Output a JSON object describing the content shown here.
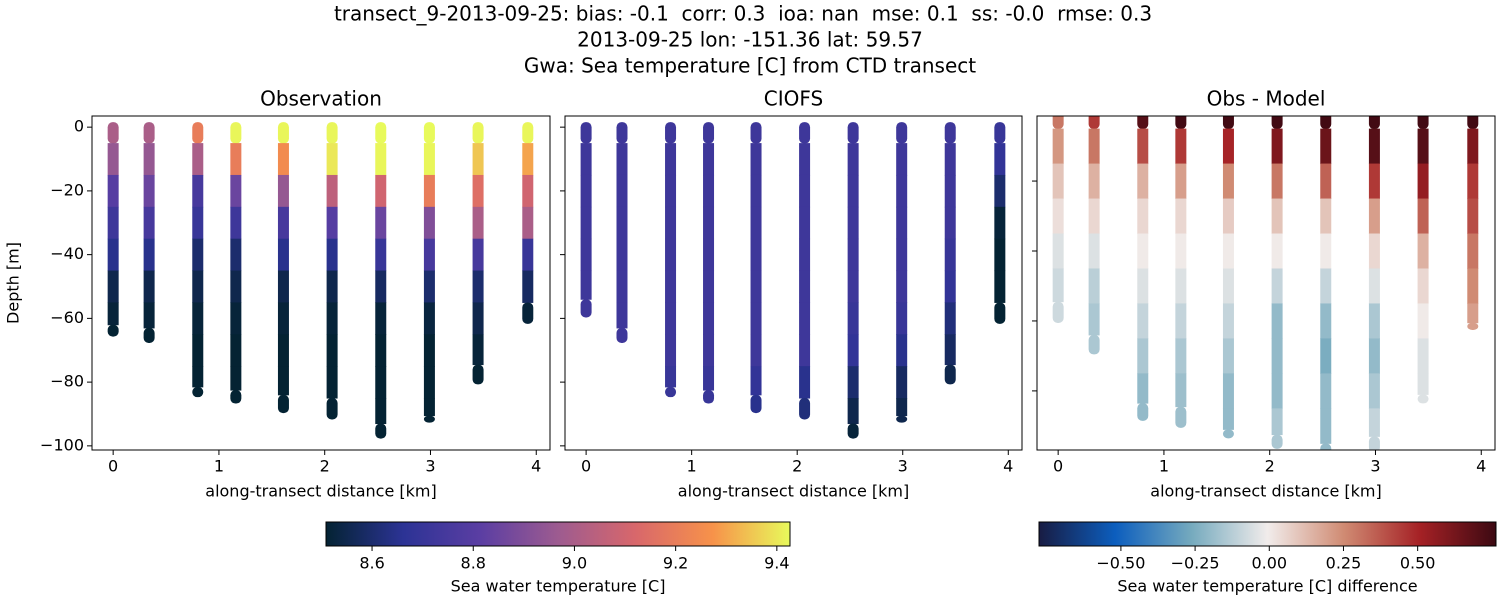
{
  "suptitle": [
    "transect_9-2013-09-25: bias: -0.1  corr: 0.3  ioa: nan  mse: 0.1  ss: -0.0  rmse: 0.3",
    "2013-09-25 lon: -151.36 lat: 59.57",
    "Gwa: Sea temperature [C] from CTD transect"
  ],
  "colorbars": [
    {
      "label": "Sea water temperature [C]",
      "clim": [
        8.509,
        9.426
      ],
      "colormap": [
        "#042333",
        "#2c3395",
        "#5b3ea3",
        "#9d5b90",
        "#d8676b",
        "#f7924a",
        "#e8fa5b"
      ],
      "ticks": [
        8.6,
        8.8,
        {
          "value": 9,
          "label": "9.0"
        },
        9.2,
        9.4
      ]
    },
    {
      "label": "Sea water temperature [C] difference",
      "clim": [
        -0.776,
        0.764
      ],
      "colormap": [
        "#181c43",
        "#0c5ebe",
        "#75aabe",
        "#f1eceb",
        "#d08b73",
        "#a52125",
        "#3c0912"
      ],
      "ticks": [
        {
          "value": -0.5,
          "label": "−0.50"
        },
        {
          "value": -0.25,
          "label": "−0.25"
        },
        {
          "value": 0,
          "label": "0.00"
        },
        0.25,
        {
          "value": 0.5,
          "label": "0.50"
        }
      ]
    }
  ],
  "chart_data": [
    {
      "type": "scatter",
      "title": "Observation",
      "xlabel": "along-transect distance [km]",
      "ylabel": "Depth [m]",
      "colorbar": 0,
      "xlim": [
        -0.2,
        4.13
      ],
      "xticks": [
        0,
        1,
        2,
        3,
        4
      ],
      "ylim": [
        -101.3,
        3.5
      ],
      "yticks": [
        0,
        {
          "value": -20,
          "label": "−20"
        },
        {
          "value": -40,
          "label": "−40"
        },
        {
          "value": -60,
          "label": "−60"
        },
        {
          "value": -80,
          "label": "−80"
        },
        {
          "value": -100,
          "label": "−100"
        }
      ],
      "casts": [
        {
          "x": 0,
          "depth": [
            0,
            -10,
            -20,
            -30,
            -40,
            -50,
            -60,
            -64
          ],
          "values": [
            9.0,
            8.95,
            8.8,
            8.72,
            8.65,
            8.55,
            8.52,
            8.5
          ]
        },
        {
          "x": 0.34,
          "depth": [
            0,
            -10,
            -20,
            -30,
            -40,
            -50,
            -60,
            -66
          ],
          "values": [
            9.0,
            8.95,
            8.85,
            8.75,
            8.65,
            8.55,
            8.52,
            8.5
          ]
        },
        {
          "x": 0.8,
          "depth": [
            0,
            -10,
            -20,
            -30,
            -40,
            -50,
            -60,
            -70,
            -80,
            -83
          ],
          "values": [
            9.2,
            9.0,
            8.75,
            8.7,
            8.6,
            8.55,
            8.52,
            8.5,
            8.5,
            8.5
          ]
        },
        {
          "x": 1.16,
          "depth": [
            0,
            -10,
            -20,
            -30,
            -40,
            -50,
            -60,
            -70,
            -80,
            -85
          ],
          "values": [
            9.42,
            9.2,
            8.85,
            8.72,
            8.6,
            8.55,
            8.52,
            8.5,
            8.5,
            8.5
          ]
        },
        {
          "x": 1.61,
          "depth": [
            0,
            -10,
            -20,
            -30,
            -40,
            -50,
            -60,
            -70,
            -80,
            -88
          ],
          "values": [
            9.42,
            9.25,
            8.95,
            8.75,
            8.65,
            8.55,
            8.52,
            8.5,
            8.5,
            8.5
          ]
        },
        {
          "x": 2.07,
          "depth": [
            0,
            -10,
            -20,
            -30,
            -40,
            -50,
            -60,
            -70,
            -80,
            -90
          ],
          "values": [
            9.42,
            9.4,
            9.05,
            8.8,
            8.65,
            8.55,
            8.52,
            8.5,
            8.5,
            8.5
          ]
        },
        {
          "x": 2.53,
          "depth": [
            0,
            -10,
            -20,
            -30,
            -40,
            -50,
            -60,
            -70,
            -80,
            -90,
            -96
          ],
          "values": [
            9.43,
            9.42,
            9.1,
            8.85,
            8.7,
            8.58,
            8.52,
            8.5,
            8.5,
            8.5,
            8.5
          ]
        },
        {
          "x": 2.99,
          "depth": [
            0,
            -10,
            -20,
            -30,
            -40,
            -50,
            -60,
            -70,
            -80,
            -90,
            -91
          ],
          "values": [
            9.43,
            9.42,
            9.2,
            8.9,
            8.75,
            8.6,
            8.53,
            8.5,
            8.5,
            8.5,
            8.5
          ]
        },
        {
          "x": 3.45,
          "depth": [
            0,
            -10,
            -20,
            -30,
            -40,
            -50,
            -60,
            -70,
            -79
          ],
          "values": [
            9.42,
            9.35,
            9.15,
            9.0,
            8.75,
            8.6,
            8.55,
            8.52,
            8.5
          ]
        },
        {
          "x": 3.92,
          "depth": [
            0,
            -10,
            -20,
            -30,
            -40,
            -50,
            -60
          ],
          "values": [
            9.42,
            9.3,
            9.1,
            9.0,
            8.7,
            8.58,
            8.52
          ]
        }
      ]
    },
    {
      "type": "scatter",
      "title": "CIOFS",
      "xlabel": "along-transect distance [km]",
      "colorbar": 0,
      "sharey": true,
      "xlim": [
        -0.2,
        4.13
      ],
      "xticks": [
        0,
        1,
        2,
        3,
        4
      ],
      "casts": [
        {
          "x": 0,
          "depth": [
            0,
            -10,
            -20,
            -30,
            -40,
            -50,
            -58
          ],
          "values": [
            8.72,
            8.72,
            8.72,
            8.72,
            8.72,
            8.72,
            8.72
          ]
        },
        {
          "x": 0.34,
          "depth": [
            0,
            -10,
            -20,
            -30,
            -40,
            -50,
            -60,
            -66
          ],
          "values": [
            8.72,
            8.72,
            8.72,
            8.72,
            8.72,
            8.72,
            8.72,
            8.72
          ]
        },
        {
          "x": 0.8,
          "depth": [
            0,
            -10,
            -20,
            -30,
            -40,
            -50,
            -60,
            -70,
            -80,
            -83
          ],
          "values": [
            8.72,
            8.72,
            8.72,
            8.72,
            8.72,
            8.72,
            8.72,
            8.72,
            8.7,
            8.7
          ]
        },
        {
          "x": 1.16,
          "depth": [
            0,
            -10,
            -20,
            -30,
            -40,
            -50,
            -60,
            -70,
            -80,
            -85
          ],
          "values": [
            8.72,
            8.72,
            8.72,
            8.72,
            8.72,
            8.72,
            8.72,
            8.72,
            8.7,
            8.7
          ]
        },
        {
          "x": 1.61,
          "depth": [
            0,
            -10,
            -20,
            -30,
            -40,
            -50,
            -60,
            -70,
            -80,
            -88
          ],
          "values": [
            8.72,
            8.72,
            8.72,
            8.72,
            8.72,
            8.72,
            8.72,
            8.72,
            8.68,
            8.65
          ]
        },
        {
          "x": 2.07,
          "depth": [
            0,
            -10,
            -20,
            -30,
            -40,
            -50,
            -60,
            -70,
            -80,
            -90
          ],
          "values": [
            8.72,
            8.72,
            8.72,
            8.72,
            8.72,
            8.72,
            8.72,
            8.72,
            8.65,
            8.62
          ]
        },
        {
          "x": 2.53,
          "depth": [
            0,
            -10,
            -20,
            -30,
            -40,
            -50,
            -60,
            -70,
            -80,
            -90,
            -96
          ],
          "values": [
            8.72,
            8.72,
            8.72,
            8.72,
            8.72,
            8.72,
            8.7,
            8.68,
            8.6,
            8.55,
            8.52
          ]
        },
        {
          "x": 2.99,
          "depth": [
            0,
            -10,
            -20,
            -30,
            -40,
            -50,
            -60,
            -70,
            -80,
            -90,
            -91
          ],
          "values": [
            8.72,
            8.72,
            8.72,
            8.72,
            8.72,
            8.72,
            8.7,
            8.65,
            8.58,
            8.55,
            8.55
          ]
        },
        {
          "x": 3.45,
          "depth": [
            0,
            -10,
            -20,
            -30,
            -40,
            -50,
            -60,
            -70,
            -79
          ],
          "values": [
            8.72,
            8.72,
            8.72,
            8.72,
            8.7,
            8.68,
            8.62,
            8.58,
            8.55
          ]
        },
        {
          "x": 3.92,
          "depth": [
            0,
            -10,
            -20,
            -30,
            -40,
            -50,
            -60
          ],
          "values": [
            8.7,
            8.68,
            8.6,
            8.52,
            8.5,
            8.5,
            8.5
          ]
        }
      ]
    },
    {
      "type": "scatter",
      "title": "Obs - Model",
      "xlabel": "along-transect distance [km]",
      "colorbar": 1,
      "ytick_labels": false,
      "xlim": [
        -0.2,
        4.13
      ],
      "xticks": [
        0,
        1,
        2,
        3,
        4
      ],
      "ylim": [
        -96.9,
        -1.4
      ],
      "yticks": [
        -80,
        -60,
        -40,
        -20
      ],
      "casts": [
        {
          "x": 0,
          "depth": [
            0,
            -10,
            -20,
            -30,
            -40,
            -50,
            -59
          ],
          "values": [
            0.3,
            0.22,
            0.1,
            0.03,
            -0.05,
            -0.08,
            -0.08
          ]
        },
        {
          "x": 0.34,
          "depth": [
            0,
            -10,
            -20,
            -30,
            -40,
            -50,
            -60,
            -68
          ],
          "values": [
            0.45,
            0.3,
            0.15,
            0.05,
            -0.05,
            -0.12,
            -0.15,
            -0.15
          ]
        },
        {
          "x": 0.8,
          "depth": [
            0,
            -10,
            -20,
            -30,
            -40,
            -50,
            -60,
            -70,
            -80,
            -87
          ],
          "values": [
            0.7,
            0.4,
            0.15,
            0.05,
            0,
            -0.05,
            -0.1,
            -0.15,
            -0.2,
            -0.2
          ]
        },
        {
          "x": 1.16,
          "depth": [
            0,
            -10,
            -20,
            -30,
            -40,
            -50,
            -60,
            -70,
            -80,
            -89
          ],
          "values": [
            0.75,
            0.45,
            0.2,
            0.05,
            0,
            -0.05,
            -0.1,
            -0.15,
            -0.18,
            -0.18
          ]
        },
        {
          "x": 1.61,
          "depth": [
            0,
            -10,
            -20,
            -30,
            -40,
            -50,
            -60,
            -70,
            -80,
            -90,
            -92
          ],
          "values": [
            0.75,
            0.5,
            0.25,
            0.08,
            0,
            -0.05,
            -0.1,
            -0.15,
            -0.2,
            -0.2,
            -0.2
          ]
        },
        {
          "x": 2.07,
          "depth": [
            0,
            -10,
            -20,
            -30,
            -40,
            -50,
            -60,
            -70,
            -80,
            -90,
            -95
          ],
          "values": [
            0.75,
            0.6,
            0.3,
            0.1,
            0,
            -0.1,
            -0.2,
            -0.2,
            -0.2,
            -0.15,
            -0.15
          ]
        },
        {
          "x": 2.53,
          "depth": [
            0,
            -10,
            -20,
            -30,
            -40,
            -50,
            -60,
            -70,
            -80,
            -90,
            -100
          ],
          "values": [
            0.75,
            0.65,
            0.35,
            0.1,
            0,
            -0.1,
            -0.2,
            -0.25,
            -0.2,
            -0.2,
            -0.2
          ]
        },
        {
          "x": 2.99,
          "depth": [
            0,
            -10,
            -20,
            -30,
            -40,
            -50,
            -60,
            -70,
            -80,
            -90,
            -96
          ],
          "values": [
            0.75,
            0.7,
            0.45,
            0.2,
            0.05,
            -0.05,
            -0.15,
            -0.2,
            -0.15,
            -0.1,
            -0.1
          ]
        },
        {
          "x": 3.45,
          "depth": [
            0,
            -10,
            -20,
            -30,
            -40,
            -50,
            -60,
            -70,
            -80,
            -82
          ],
          "values": [
            0.75,
            0.7,
            0.55,
            0.35,
            0.15,
            0.05,
            0,
            -0.05,
            -0.05,
            -0.05
          ]
        },
        {
          "x": 3.92,
          "depth": [
            0,
            -10,
            -20,
            -30,
            -40,
            -50,
            -60,
            -61
          ],
          "values": [
            0.75,
            0.6,
            0.45,
            0.4,
            0.3,
            0.25,
            0.2,
            0.2
          ]
        }
      ]
    }
  ]
}
